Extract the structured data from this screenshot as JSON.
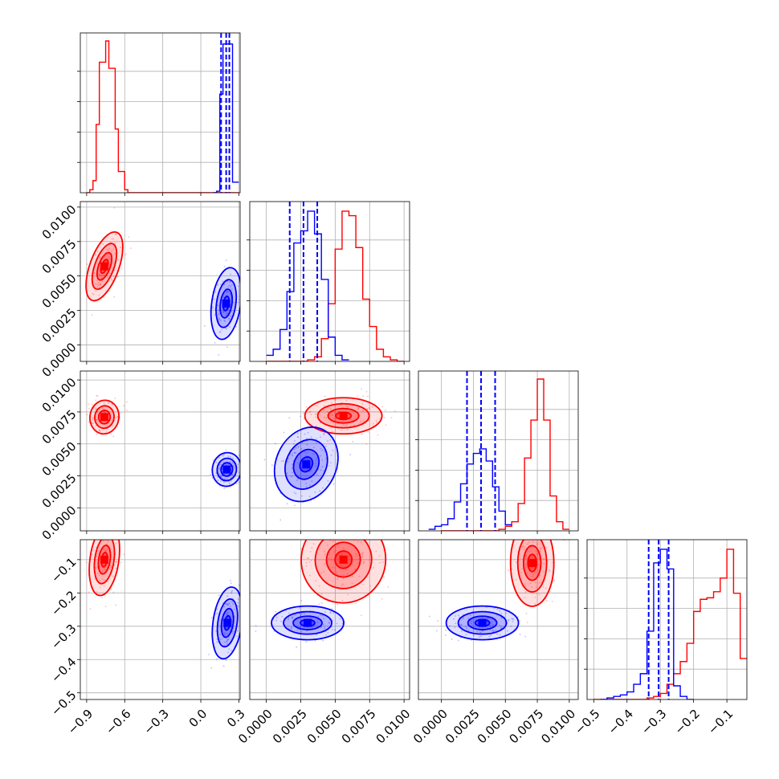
{
  "chart_data": {
    "type": "corner",
    "grid": true,
    "series": [
      {
        "color": "#ff0000",
        "marginals": [
          {
            "x": [
              -0.9,
              -0.875,
              -0.85,
              -0.825,
              -0.8,
              -0.775,
              -0.75,
              -0.725,
              -0.7,
              -0.675,
              -0.65,
              -0.625,
              -0.6,
              -0.575,
              -0.55,
              0.3
            ],
            "values": [
              0,
              0.02,
              0.08,
              0.45,
              0.86,
              0.86,
              1.0,
              0.82,
              0.82,
              0.42,
              0.14,
              0.14,
              0.02,
              0.0,
              0.0,
              0
            ]
          },
          {
            "x": [
              0.0,
              0.0005,
              0.001,
              0.0015,
              0.002,
              0.0025,
              0.003,
              0.0035,
              0.004,
              0.0045,
              0.005,
              0.0055,
              0.006,
              0.0065,
              0.007,
              0.0075,
              0.008,
              0.0085,
              0.009,
              0.0095,
              0.01
            ],
            "values": [
              0,
              0,
              0,
              0,
              0,
              0,
              0.01,
              0.03,
              0.15,
              0.38,
              0.74,
              0.99,
              0.96,
              0.75,
              0.41,
              0.23,
              0.08,
              0.03,
              0.01,
              0,
              0
            ]
          },
          {
            "x": [
              0.0,
              0.0005,
              0.001,
              0.0015,
              0.002,
              0.0025,
              0.003,
              0.0035,
              0.004,
              0.0045,
              0.005,
              0.0055,
              0.006,
              0.0065,
              0.007,
              0.0075,
              0.008,
              0.0085,
              0.009,
              0.0095,
              0.01
            ],
            "values": [
              0,
              0,
              0,
              0,
              0,
              0,
              0,
              0,
              0,
              0.01,
              0.03,
              0.06,
              0.18,
              0.48,
              0.73,
              1.0,
              0.73,
              0.23,
              0.06,
              0.01,
              0
            ]
          },
          {
            "x": [
              -0.5,
              -0.48,
              -0.46,
              -0.44,
              -0.42,
              -0.4,
              -0.38,
              -0.36,
              -0.34,
              -0.32,
              -0.3,
              -0.28,
              -0.26,
              -0.24,
              -0.22,
              -0.2,
              -0.18,
              -0.16,
              -0.14,
              -0.12,
              -0.1,
              -0.08,
              -0.06,
              -0.04
            ],
            "values": [
              0,
              0,
              0,
              0,
              0,
              0,
              0,
              0,
              0.01,
              0.02,
              0.04,
              0.1,
              0.17,
              0.25,
              0.37,
              0.58,
              0.66,
              0.67,
              0.71,
              0.8,
              0.99,
              0.7,
              0.27,
              0.04
            ]
          }
        ],
        "centers": [
          [
            0.0057,
            -0.76
          ],
          [
            0.0071,
            -0.76
          ],
          [
            0.0072,
            0.0056
          ],
          [
            -0.1,
            -0.76
          ],
          [
            -0.1,
            0.0056
          ],
          [
            -0.11,
            0.0071
          ]
        ]
      },
      {
        "color": "#0000ff",
        "marginals": [
          {
            "x": [
              0.1,
              0.125,
              0.15,
              0.175,
              0.2,
              0.225,
              0.25,
              0.275,
              0.3
            ],
            "values": [
              0,
              0.01,
              0.65,
              0.98,
              0.98,
              0.98,
              0.07,
              0.07,
              0
            ]
          },
          {
            "x": [
              0.0,
              0.0005,
              0.001,
              0.0015,
              0.002,
              0.0025,
              0.003,
              0.0035,
              0.004,
              0.0045,
              0.005,
              0.0055,
              0.006
            ],
            "values": [
              0.04,
              0.08,
              0.21,
              0.46,
              0.78,
              0.86,
              0.99,
              0.84,
              0.54,
              0.16,
              0.04,
              0.01,
              0
            ]
          },
          {
            "x": [
              -0.001,
              -0.0005,
              0.0,
              0.0005,
              0.001,
              0.0015,
              0.002,
              0.0025,
              0.003,
              0.0035,
              0.004,
              0.0045,
              0.005,
              0.0055
            ],
            "values": [
              0.01,
              0.03,
              0.04,
              0.08,
              0.19,
              0.31,
              0.44,
              0.51,
              0.54,
              0.46,
              0.29,
              0.13,
              0.04,
              0.01
            ]
          },
          {
            "x": [
              -0.48,
              -0.46,
              -0.44,
              -0.42,
              -0.4,
              -0.38,
              -0.36,
              -0.34,
              -0.32,
              -0.3,
              -0.28,
              -0.26,
              -0.24,
              -0.22,
              -0.2
            ],
            "values": [
              0,
              0.01,
              0.02,
              0.03,
              0.05,
              0.1,
              0.17,
              0.45,
              0.9,
              0.99,
              0.86,
              0.09,
              0.02,
              0,
              0
            ]
          }
        ],
        "quantiles": [
          [
            0.16,
            0.2,
            0.225
          ],
          [
            0.0017,
            0.0027,
            0.0037
          ],
          [
            0.002,
            0.0031,
            0.0042
          ],
          [
            -0.335,
            -0.305,
            -0.275
          ]
        ],
        "centers": [
          [
            0.003,
            0.2
          ],
          [
            0.003,
            0.205
          ],
          [
            0.0034,
            0.0029
          ],
          [
            -0.29,
            0.21
          ],
          [
            -0.29,
            0.003
          ],
          [
            -0.29,
            0.0032
          ]
        ]
      }
    ],
    "axes": [
      {
        "lim": [
          -0.95,
          0.31
        ],
        "ticks": [
          -0.9,
          -0.6,
          -0.3,
          0.0,
          0.3
        ],
        "tick_labels": [
          "−0.9",
          "−0.6",
          "−0.3",
          "0.0",
          "0.3"
        ]
      },
      {
        "lim": [
          -0.0012,
          0.0104
        ],
        "ticks": [
          0.0,
          0.0025,
          0.005,
          0.0075,
          0.01
        ],
        "tick_labels": [
          "0.0000",
          "0.0025",
          "0.0050",
          "0.0075",
          "0.0100"
        ]
      },
      {
        "lim": [
          -0.0018,
          0.0107
        ],
        "ticks": [
          0.0,
          0.0025,
          0.005,
          0.0075,
          0.01
        ],
        "tick_labels": [
          "0.0000",
          "0.0025",
          "0.0050",
          "0.0075",
          "0.0100"
        ]
      },
      {
        "lim": [
          -0.52,
          -0.04
        ],
        "ticks": [
          -0.5,
          -0.4,
          -0.3,
          -0.2,
          -0.1
        ],
        "tick_labels": [
          "−0.5",
          "−0.4",
          "−0.3",
          "−0.2",
          "−0.1"
        ]
      }
    ]
  }
}
